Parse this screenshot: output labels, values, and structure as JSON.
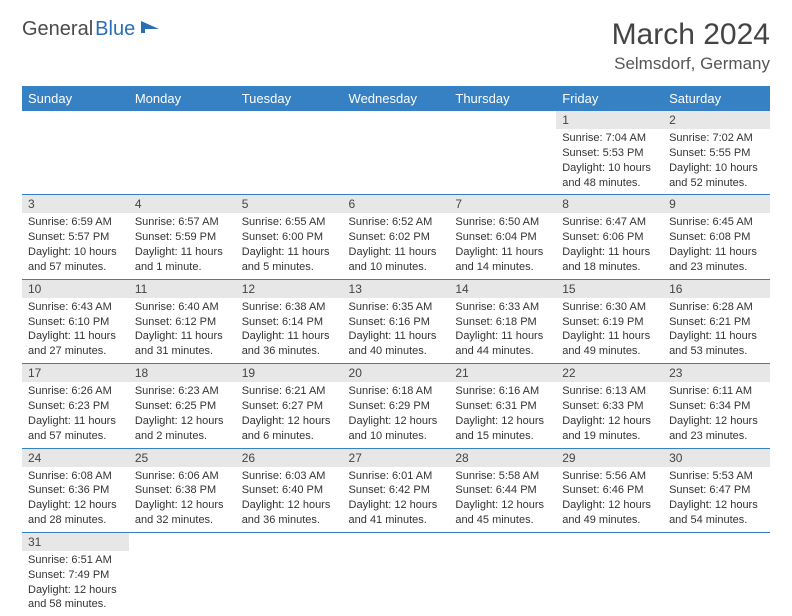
{
  "logo": {
    "text1": "General",
    "text2": "Blue"
  },
  "title": "March 2024",
  "location": "Selmsdorf, Germany",
  "colors": {
    "header_bg": "#3680c4",
    "header_text": "#ffffff",
    "daynum_bg": "#e7e7e7",
    "cell_border": "#3680c4",
    "body_text": "#333333"
  },
  "weekdays": [
    "Sunday",
    "Monday",
    "Tuesday",
    "Wednesday",
    "Thursday",
    "Friday",
    "Saturday"
  ],
  "weeks": [
    [
      null,
      null,
      null,
      null,
      null,
      {
        "n": "1",
        "sr": "Sunrise: 7:04 AM",
        "ss": "Sunset: 5:53 PM",
        "dl": "Daylight: 10 hours and 48 minutes."
      },
      {
        "n": "2",
        "sr": "Sunrise: 7:02 AM",
        "ss": "Sunset: 5:55 PM",
        "dl": "Daylight: 10 hours and 52 minutes."
      }
    ],
    [
      {
        "n": "3",
        "sr": "Sunrise: 6:59 AM",
        "ss": "Sunset: 5:57 PM",
        "dl": "Daylight: 10 hours and 57 minutes."
      },
      {
        "n": "4",
        "sr": "Sunrise: 6:57 AM",
        "ss": "Sunset: 5:59 PM",
        "dl": "Daylight: 11 hours and 1 minute."
      },
      {
        "n": "5",
        "sr": "Sunrise: 6:55 AM",
        "ss": "Sunset: 6:00 PM",
        "dl": "Daylight: 11 hours and 5 minutes."
      },
      {
        "n": "6",
        "sr": "Sunrise: 6:52 AM",
        "ss": "Sunset: 6:02 PM",
        "dl": "Daylight: 11 hours and 10 minutes."
      },
      {
        "n": "7",
        "sr": "Sunrise: 6:50 AM",
        "ss": "Sunset: 6:04 PM",
        "dl": "Daylight: 11 hours and 14 minutes."
      },
      {
        "n": "8",
        "sr": "Sunrise: 6:47 AM",
        "ss": "Sunset: 6:06 PM",
        "dl": "Daylight: 11 hours and 18 minutes."
      },
      {
        "n": "9",
        "sr": "Sunrise: 6:45 AM",
        "ss": "Sunset: 6:08 PM",
        "dl": "Daylight: 11 hours and 23 minutes."
      }
    ],
    [
      {
        "n": "10",
        "sr": "Sunrise: 6:43 AM",
        "ss": "Sunset: 6:10 PM",
        "dl": "Daylight: 11 hours and 27 minutes."
      },
      {
        "n": "11",
        "sr": "Sunrise: 6:40 AM",
        "ss": "Sunset: 6:12 PM",
        "dl": "Daylight: 11 hours and 31 minutes."
      },
      {
        "n": "12",
        "sr": "Sunrise: 6:38 AM",
        "ss": "Sunset: 6:14 PM",
        "dl": "Daylight: 11 hours and 36 minutes."
      },
      {
        "n": "13",
        "sr": "Sunrise: 6:35 AM",
        "ss": "Sunset: 6:16 PM",
        "dl": "Daylight: 11 hours and 40 minutes."
      },
      {
        "n": "14",
        "sr": "Sunrise: 6:33 AM",
        "ss": "Sunset: 6:18 PM",
        "dl": "Daylight: 11 hours and 44 minutes."
      },
      {
        "n": "15",
        "sr": "Sunrise: 6:30 AM",
        "ss": "Sunset: 6:19 PM",
        "dl": "Daylight: 11 hours and 49 minutes."
      },
      {
        "n": "16",
        "sr": "Sunrise: 6:28 AM",
        "ss": "Sunset: 6:21 PM",
        "dl": "Daylight: 11 hours and 53 minutes."
      }
    ],
    [
      {
        "n": "17",
        "sr": "Sunrise: 6:26 AM",
        "ss": "Sunset: 6:23 PM",
        "dl": "Daylight: 11 hours and 57 minutes."
      },
      {
        "n": "18",
        "sr": "Sunrise: 6:23 AM",
        "ss": "Sunset: 6:25 PM",
        "dl": "Daylight: 12 hours and 2 minutes."
      },
      {
        "n": "19",
        "sr": "Sunrise: 6:21 AM",
        "ss": "Sunset: 6:27 PM",
        "dl": "Daylight: 12 hours and 6 minutes."
      },
      {
        "n": "20",
        "sr": "Sunrise: 6:18 AM",
        "ss": "Sunset: 6:29 PM",
        "dl": "Daylight: 12 hours and 10 minutes."
      },
      {
        "n": "21",
        "sr": "Sunrise: 6:16 AM",
        "ss": "Sunset: 6:31 PM",
        "dl": "Daylight: 12 hours and 15 minutes."
      },
      {
        "n": "22",
        "sr": "Sunrise: 6:13 AM",
        "ss": "Sunset: 6:33 PM",
        "dl": "Daylight: 12 hours and 19 minutes."
      },
      {
        "n": "23",
        "sr": "Sunrise: 6:11 AM",
        "ss": "Sunset: 6:34 PM",
        "dl": "Daylight: 12 hours and 23 minutes."
      }
    ],
    [
      {
        "n": "24",
        "sr": "Sunrise: 6:08 AM",
        "ss": "Sunset: 6:36 PM",
        "dl": "Daylight: 12 hours and 28 minutes."
      },
      {
        "n": "25",
        "sr": "Sunrise: 6:06 AM",
        "ss": "Sunset: 6:38 PM",
        "dl": "Daylight: 12 hours and 32 minutes."
      },
      {
        "n": "26",
        "sr": "Sunrise: 6:03 AM",
        "ss": "Sunset: 6:40 PM",
        "dl": "Daylight: 12 hours and 36 minutes."
      },
      {
        "n": "27",
        "sr": "Sunrise: 6:01 AM",
        "ss": "Sunset: 6:42 PM",
        "dl": "Daylight: 12 hours and 41 minutes."
      },
      {
        "n": "28",
        "sr": "Sunrise: 5:58 AM",
        "ss": "Sunset: 6:44 PM",
        "dl": "Daylight: 12 hours and 45 minutes."
      },
      {
        "n": "29",
        "sr": "Sunrise: 5:56 AM",
        "ss": "Sunset: 6:46 PM",
        "dl": "Daylight: 12 hours and 49 minutes."
      },
      {
        "n": "30",
        "sr": "Sunrise: 5:53 AM",
        "ss": "Sunset: 6:47 PM",
        "dl": "Daylight: 12 hours and 54 minutes."
      }
    ],
    [
      {
        "n": "31",
        "sr": "Sunrise: 6:51 AM",
        "ss": "Sunset: 7:49 PM",
        "dl": "Daylight: 12 hours and 58 minutes."
      },
      null,
      null,
      null,
      null,
      null,
      null
    ]
  ]
}
